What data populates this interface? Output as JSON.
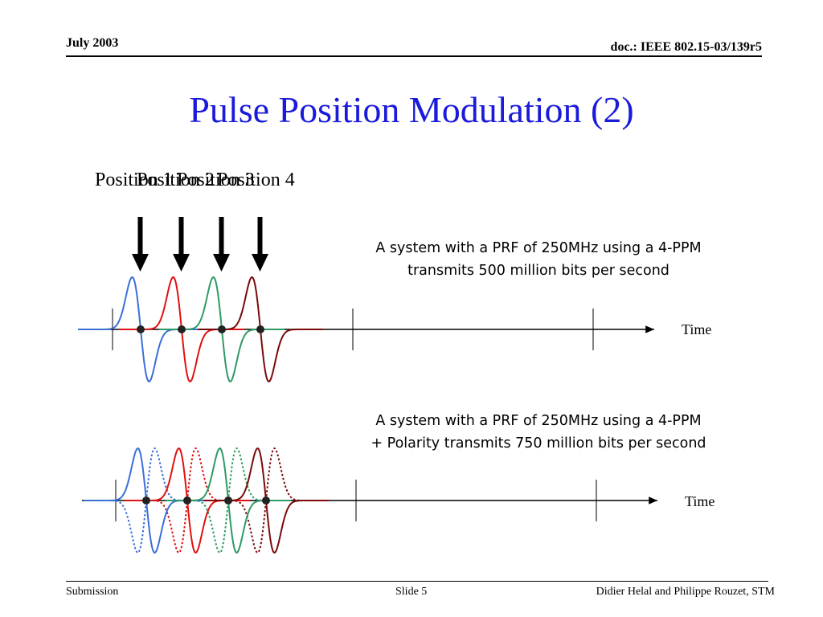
{
  "header": {
    "date": "July 2003",
    "doc_id": "doc.: IEEE 802.15-03/139r5"
  },
  "title": "Pulse Position Modulation (2)",
  "positions": [
    "Position 1",
    "Position 2",
    "Position 3",
    "Position 4"
  ],
  "diagram1": {
    "caption_line1": "A system with a PRF of 250MHz using a 4-PPM",
    "caption_line2": "transmits 500 million bits per second",
    "axis_label": "Time"
  },
  "diagram2": {
    "caption_line1": "A system with a PRF of 250MHz using a 4-PPM",
    "caption_line2": "+ Polarity transmits 750 million bits per second",
    "axis_label": "Time"
  },
  "colors": {
    "title": "#1a1adb",
    "pulse1": "#3a6fd8",
    "pulse2": "#e01010",
    "pulse3": "#2e9a63",
    "pulse4": "#7a0a0a"
  },
  "footer": {
    "left": "Submission",
    "center": "Slide 5",
    "right": "Didier Helal and Philippe Rouzet, STM"
  }
}
